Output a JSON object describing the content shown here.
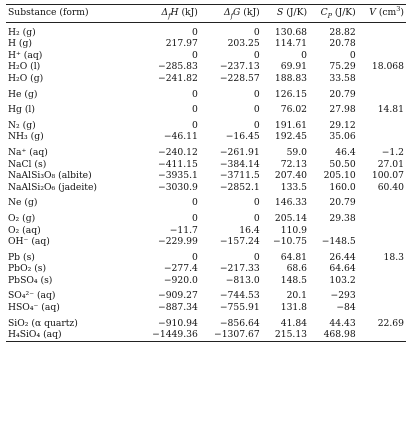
{
  "headers": {
    "substance": "Substance (form)",
    "dfh_unit": "(kJ)",
    "dfg_unit": "(kJ)",
    "s_unit": "(J/K)",
    "cp_unit": "(J/K)",
    "v_unit": "(cm",
    "v_unit_end": ")"
  },
  "groups": [
    {
      "rows": [
        {
          "sub": "H₂ (g)",
          "dfh": "0",
          "dfg": "0",
          "s": "130.68",
          "cp": "28.82",
          "v": ""
        },
        {
          "sub": "H (g)",
          "dfh": "217.97",
          "dfg": "203.25",
          "s": "114.71",
          "cp": "20.78",
          "v": ""
        },
        {
          "sub": "H⁺ (aq)",
          "dfh": "0",
          "dfg": "0",
          "s": "0",
          "cp": "0",
          "v": ""
        },
        {
          "sub": "H₂O (l)",
          "dfh": "−285.83",
          "dfg": "−237.13",
          "s": "69.91",
          "cp": "75.29",
          "v": "18.068"
        },
        {
          "sub": "H₂O (g)",
          "dfh": "−241.82",
          "dfg": "−228.57",
          "s": "188.83",
          "cp": "33.58",
          "v": ""
        }
      ]
    },
    {
      "rows": [
        {
          "sub": "He (g)",
          "dfh": "0",
          "dfg": "0",
          "s": "126.15",
          "cp": "20.79",
          "v": ""
        }
      ]
    },
    {
      "rows": [
        {
          "sub": "Hg (l)",
          "dfh": "0",
          "dfg": "0",
          "s": "76.02",
          "cp": "27.98",
          "v": "14.81"
        }
      ]
    },
    {
      "rows": [
        {
          "sub": "N₂ (g)",
          "dfh": "0",
          "dfg": "0",
          "s": "191.61",
          "cp": "29.12",
          "v": ""
        },
        {
          "sub": "NH₃ (g)",
          "dfh": "−46.11",
          "dfg": "−16.45",
          "s": "192.45",
          "cp": "35.06",
          "v": ""
        }
      ]
    },
    {
      "rows": [
        {
          "sub": "Na⁺ (aq)",
          "dfh": "−240.12",
          "dfg": "−261.91",
          "s": "59.0",
          "cp": "46.4",
          "v": "−1.2"
        },
        {
          "sub": "NaCl (s)",
          "dfh": "−411.15",
          "dfg": "−384.14",
          "s": "72.13",
          "cp": "50.50",
          "v": "27.01"
        },
        {
          "sub": "NaAlSi₃O₈ (albite)",
          "dfh": "−3935.1",
          "dfg": "−3711.5",
          "s": "207.40",
          "cp": "205.10",
          "v": "100.07"
        },
        {
          "sub": "NaAlSi₂O₆ (jadeite)",
          "dfh": "−3030.9",
          "dfg": "−2852.1",
          "s": "133.5",
          "cp": "160.0",
          "v": "60.40"
        }
      ]
    },
    {
      "rows": [
        {
          "sub": "Ne (g)",
          "dfh": "0",
          "dfg": "0",
          "s": "146.33",
          "cp": "20.79",
          "v": ""
        }
      ]
    },
    {
      "rows": [
        {
          "sub": "O₂ (g)",
          "dfh": "0",
          "dfg": "0",
          "s": "205.14",
          "cp": "29.38",
          "v": ""
        },
        {
          "sub": "O₂ (aq)",
          "dfh": "−11.7",
          "dfg": "16.4",
          "s": "110.9",
          "cp": "",
          "v": ""
        },
        {
          "sub": "OH⁻ (aq)",
          "dfh": "−229.99",
          "dfg": "−157.24",
          "s": "−10.75",
          "cp": "−148.5",
          "v": ""
        }
      ]
    },
    {
      "rows": [
        {
          "sub": "Pb (s)",
          "dfh": "0",
          "dfg": "0",
          "s": "64.81",
          "cp": "26.44",
          "v": "18.3"
        },
        {
          "sub": "PbO₂ (s)",
          "dfh": "−277.4",
          "dfg": "−217.33",
          "s": "68.6",
          "cp": "64.64",
          "v": ""
        },
        {
          "sub": "PbSO₄ (s)",
          "dfh": "−920.0",
          "dfg": "−813.0",
          "s": "148.5",
          "cp": "103.2",
          "v": ""
        }
      ]
    },
    {
      "rows": [
        {
          "sub": "SO₄²⁻ (aq)",
          "dfh": "−909.27",
          "dfg": "−744.53",
          "s": "20.1",
          "cp": "−293",
          "v": ""
        },
        {
          "sub": "HSO₄⁻ (aq)",
          "dfh": "−887.34",
          "dfg": "−755.91",
          "s": "131.8",
          "cp": "−84",
          "v": ""
        }
      ]
    },
    {
      "rows": [
        {
          "sub": "SiO₂ (α quartz)",
          "dfh": "−910.94",
          "dfg": "−856.64",
          "s": "41.84",
          "cp": "44.43",
          "v": "22.69"
        },
        {
          "sub": "H₄SiO₄ (aq)",
          "dfh": "−1449.36",
          "dfg": "−1307.67",
          "s": "215.13",
          "cp": "468.98",
          "v": ""
        }
      ]
    }
  ]
}
